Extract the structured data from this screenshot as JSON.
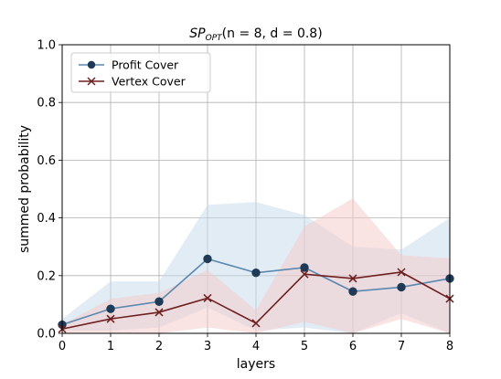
{
  "chart_data": {
    "type": "line",
    "title": {
      "main": "SP",
      "subscript": "OPT",
      "rest": "(n = 8, d = 0.8)"
    },
    "xlabel": "layers",
    "ylabel": "summed probability",
    "xlim": [
      0,
      8
    ],
    "ylim": [
      0,
      1
    ],
    "x_ticks": [
      "0",
      "1",
      "2",
      "3",
      "4",
      "5",
      "6",
      "7",
      "8"
    ],
    "y_ticks": [
      "0.0",
      "0.2",
      "0.4",
      "0.6",
      "0.8",
      "1.0"
    ],
    "grid": true,
    "legend_position": "top-left",
    "x": [
      0,
      1,
      2,
      3,
      4,
      5,
      6,
      7,
      8
    ],
    "series": [
      {
        "name": "Profit Cover",
        "marker": "circle",
        "color": "#5b88b0",
        "marker_color": "#1f3a56",
        "band_color": "#c5d9ec",
        "values": [
          0.03,
          0.085,
          0.11,
          0.258,
          0.21,
          0.228,
          0.145,
          0.16,
          0.19
        ],
        "upper": [
          0.05,
          0.18,
          0.18,
          0.445,
          0.455,
          0.41,
          0.3,
          0.29,
          0.4
        ],
        "lower": [
          0.01,
          0.01,
          0.02,
          0.09,
          0.01,
          0.02,
          0.0,
          0.07,
          0.0
        ]
      },
      {
        "name": "Vertex Cover",
        "marker": "x",
        "color": "#6e1f1f",
        "marker_color": "#6e1f1f",
        "band_color": "#f3c8c8",
        "values": [
          0.015,
          0.05,
          0.073,
          0.122,
          0.035,
          0.205,
          0.19,
          0.212,
          0.12
        ],
        "upper": [
          0.03,
          0.12,
          0.14,
          0.22,
          0.08,
          0.37,
          0.468,
          0.27,
          0.26
        ],
        "lower": [
          0.0,
          0.0,
          0.0,
          0.02,
          0.0,
          0.04,
          0.0,
          0.05,
          0.0
        ]
      }
    ]
  }
}
